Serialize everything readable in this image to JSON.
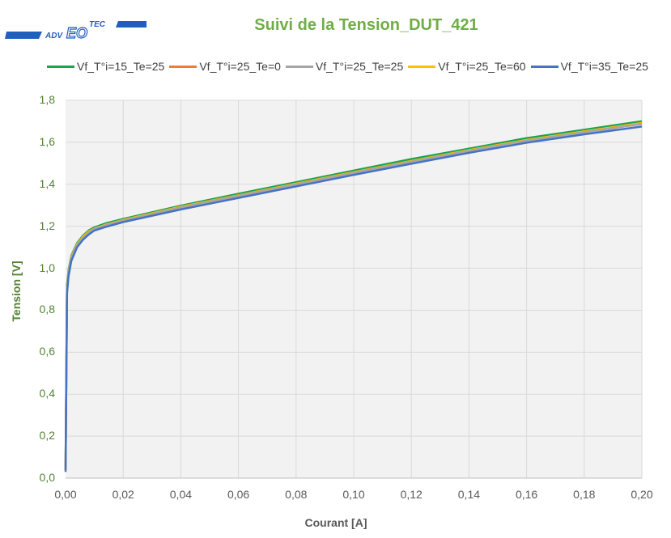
{
  "logo": {
    "text_left": "ADV",
    "text_mid": "EO",
    "text_right": "TEC",
    "color": "#1f5fbf"
  },
  "chart_data": {
    "type": "line",
    "title": "Suivi de la Tension_DUT_421",
    "xlabel": "Courant [A]",
    "ylabel": "Tension [V]",
    "xlim": [
      0,
      0.2
    ],
    "ylim": [
      0,
      1.8
    ],
    "x_ticks": [
      "0,00",
      "0,02",
      "0,04",
      "0,06",
      "0,08",
      "0,10",
      "0,12",
      "0,14",
      "0,16",
      "0,18",
      "0,20"
    ],
    "y_ticks": [
      "0,0",
      "0,2",
      "0,4",
      "0,6",
      "0,8",
      "1,0",
      "1,2",
      "1,4",
      "1,6",
      "1,8"
    ],
    "grid": true,
    "legend_position": "top",
    "x": [
      0.0,
      0.0005,
      0.001,
      0.002,
      0.004,
      0.006,
      0.008,
      0.01,
      0.014,
      0.02,
      0.04,
      0.06,
      0.08,
      0.1,
      0.12,
      0.14,
      0.16,
      0.18,
      0.2
    ],
    "series": [
      {
        "name": "Vf_T°i=15_Te=25",
        "color": "#1aa350",
        "values": [
          0.05,
          0.92,
          0.99,
          1.06,
          1.12,
          1.155,
          1.18,
          1.195,
          1.214,
          1.235,
          1.298,
          1.355,
          1.41,
          1.465,
          1.52,
          1.57,
          1.62,
          1.66,
          1.7
        ]
      },
      {
        "name": "Vf_T°i=25_Te=0",
        "color": "#ed7d31",
        "values": [
          0.04,
          0.9,
          0.975,
          1.05,
          1.11,
          1.145,
          1.17,
          1.188,
          1.205,
          1.227,
          1.29,
          1.345,
          1.4,
          1.455,
          1.508,
          1.56,
          1.608,
          1.648,
          1.688
        ]
      },
      {
        "name": "Vf_T°i=25_Te=25",
        "color": "#a5a5a5",
        "values": [
          0.04,
          0.9,
          0.975,
          1.05,
          1.11,
          1.145,
          1.17,
          1.188,
          1.205,
          1.227,
          1.29,
          1.345,
          1.4,
          1.455,
          1.508,
          1.56,
          1.608,
          1.648,
          1.688
        ]
      },
      {
        "name": "Vf_T°i=25_Te=60",
        "color": "#ffc000",
        "values": [
          0.04,
          0.91,
          0.98,
          1.055,
          1.115,
          1.15,
          1.175,
          1.19,
          1.208,
          1.23,
          1.293,
          1.348,
          1.403,
          1.458,
          1.511,
          1.563,
          1.611,
          1.652,
          1.692
        ]
      },
      {
        "name": "Vf_T°i=35_Te=25",
        "color": "#4472c4",
        "values": [
          0.03,
          0.88,
          0.96,
          1.035,
          1.1,
          1.135,
          1.16,
          1.18,
          1.197,
          1.22,
          1.28,
          1.335,
          1.39,
          1.445,
          1.498,
          1.55,
          1.598,
          1.638,
          1.675
        ]
      }
    ]
  }
}
